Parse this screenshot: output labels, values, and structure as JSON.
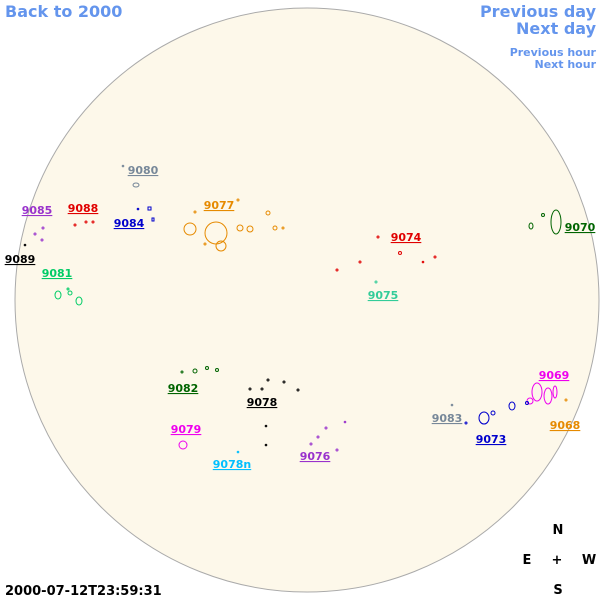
{
  "navigation": {
    "back": "Back to 2000",
    "previous_day": "Previous day",
    "next_day": "Next day",
    "previous_hour": "Previous hour",
    "next_hour": "Next hour"
  },
  "regions": [
    "9080",
    "9085",
    "9088",
    "9084",
    "9077",
    "9074",
    "9070",
    "9089",
    "9081",
    "9075",
    "9082",
    "9078",
    "9069",
    "9083",
    "9073",
    "9068",
    "9079",
    "9078n",
    "9076"
  ],
  "compass": {
    "north": "N",
    "east": "E",
    "center": "+",
    "west": "W",
    "south": "S"
  },
  "timestamp": "2000-07-12T23:59:31"
}
